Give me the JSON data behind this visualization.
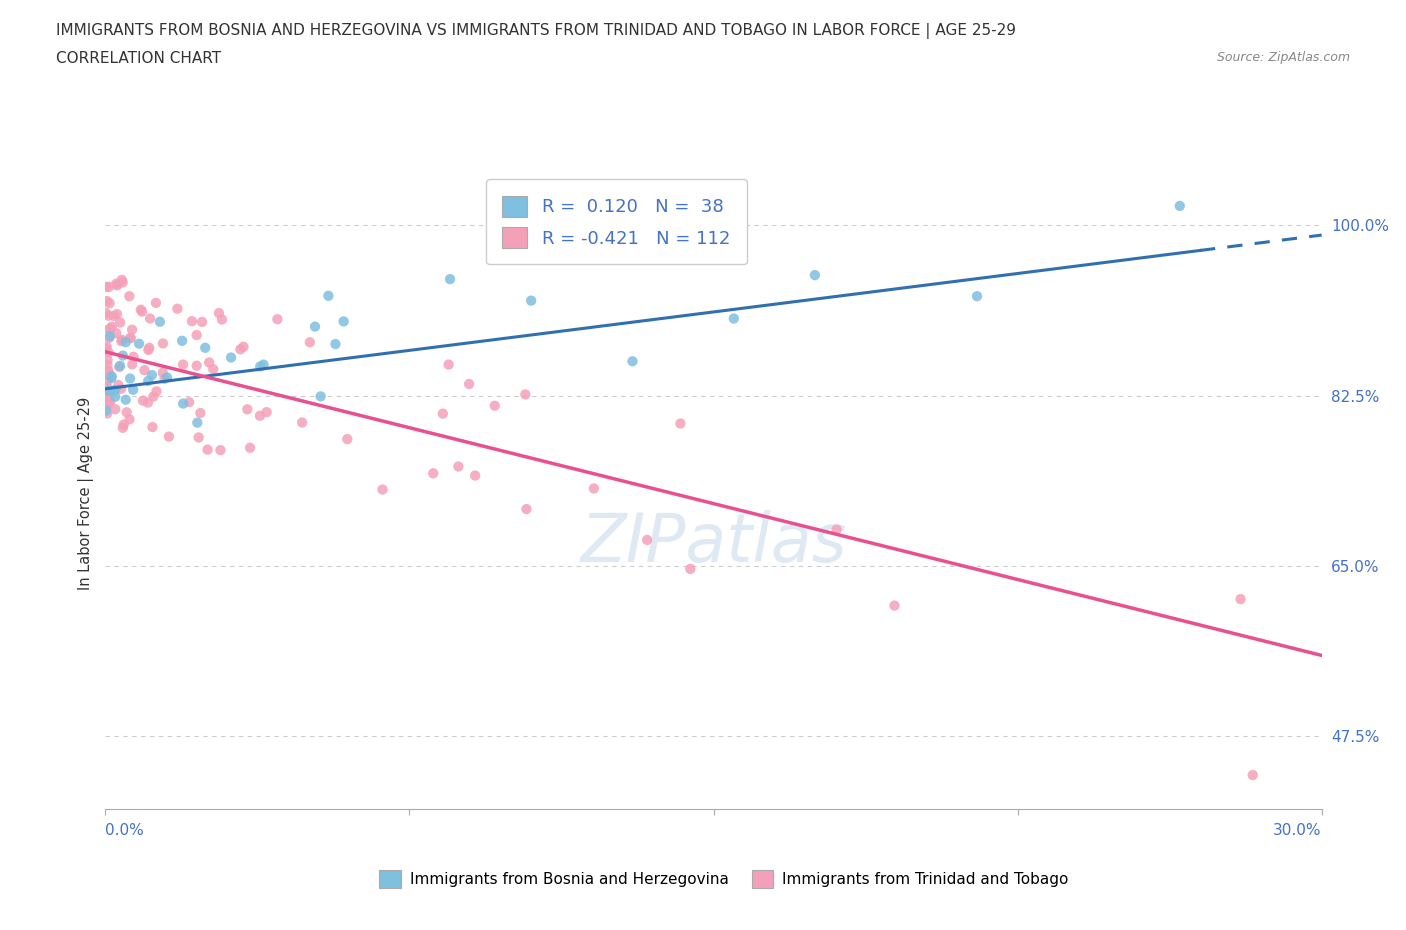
{
  "title_line1": "IMMIGRANTS FROM BOSNIA AND HERZEGOVINA VS IMMIGRANTS FROM TRINIDAD AND TOBAGO IN LABOR FORCE | AGE 25-29",
  "title_line2": "CORRELATION CHART",
  "source_text": "Source: ZipAtlas.com",
  "ylabel_label": "In Labor Force | Age 25-29",
  "legend_bosnia_r": "0.120",
  "legend_bosnia_n": "38",
  "legend_trinidad_r": "-0.421",
  "legend_trinidad_n": "112",
  "legend_label_bosnia": "Immigrants from Bosnia and Herzegovina",
  "legend_label_trinidad": "Immigrants from Trinidad and Tobago",
  "bosnia_color": "#7fbfdf",
  "trinidad_color": "#f4a0b8",
  "bosnia_line_color": "#3070b0",
  "trinidad_line_color": "#e85090",
  "xlim": [
    0.0,
    0.3
  ],
  "ylim": [
    0.4,
    1.05
  ],
  "yticks": [
    0.475,
    0.65,
    0.825,
    1.0
  ],
  "ytick_labels": [
    "47.5%",
    "65.0%",
    "82.5%",
    "100.0%"
  ],
  "bos_line_x": [
    0.0,
    0.3
  ],
  "bos_line_y": [
    0.832,
    0.99
  ],
  "tri_line_x": [
    0.0,
    0.3
  ],
  "tri_line_y": [
    0.87,
    0.558
  ]
}
